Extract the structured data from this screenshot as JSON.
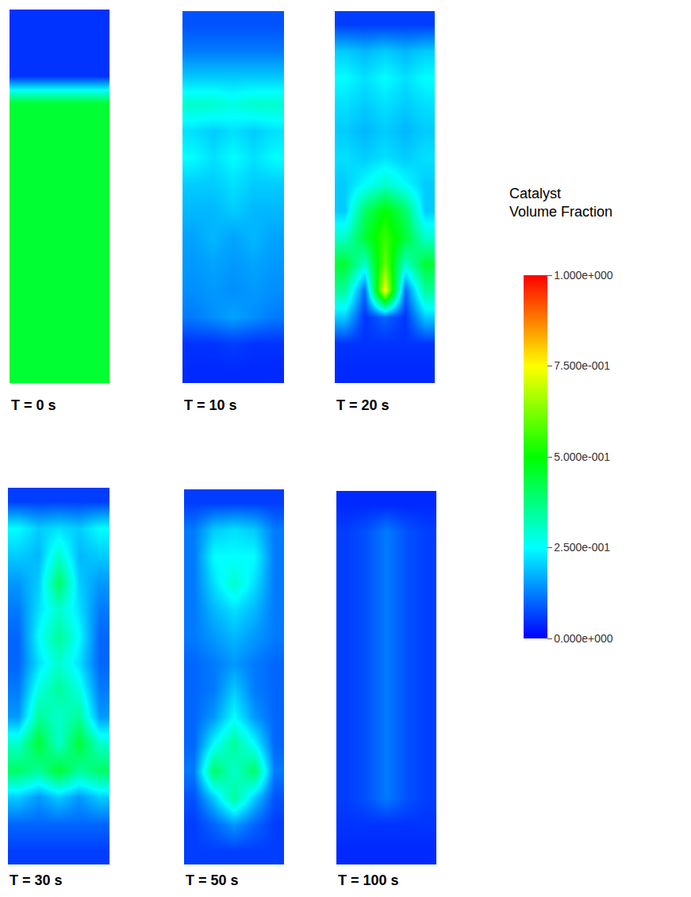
{
  "chart_data": [
    {
      "type": "heatmap",
      "title": "T = 0 s",
      "tick_labels": false,
      "cells": [
        [
          0.05,
          0.05,
          0.05,
          0.05,
          0.05
        ],
        [
          0.05,
          0.05,
          0.05,
          0.05,
          0.05
        ],
        [
          0.05,
          0.05,
          0.05,
          0.05,
          0.05
        ],
        [
          0.45,
          0.45,
          0.45,
          0.45,
          0.45
        ],
        [
          0.45,
          0.45,
          0.45,
          0.45,
          0.45
        ],
        [
          0.45,
          0.45,
          0.45,
          0.45,
          0.45
        ],
        [
          0.45,
          0.45,
          0.45,
          0.45,
          0.45
        ],
        [
          0.45,
          0.45,
          0.45,
          0.45,
          0.45
        ],
        [
          0.45,
          0.45,
          0.45,
          0.45,
          0.45
        ],
        [
          0.45,
          0.45,
          0.45,
          0.45,
          0.45
        ],
        [
          0.45,
          0.45,
          0.45,
          0.45,
          0.45
        ],
        [
          0.45,
          0.45,
          0.45,
          0.45,
          0.45
        ],
        [
          0.45,
          0.45,
          0.45,
          0.45,
          0.45
        ],
        [
          0.45,
          0.45,
          0.45,
          0.45,
          0.45
        ]
      ]
    },
    {
      "type": "heatmap",
      "title": "T = 10 s",
      "tick_labels": false,
      "cells": [
        [
          0.08,
          0.08,
          0.08,
          0.08,
          0.08
        ],
        [
          0.12,
          0.12,
          0.12,
          0.12,
          0.12
        ],
        [
          0.2,
          0.2,
          0.2,
          0.2,
          0.2
        ],
        [
          0.3,
          0.3,
          0.28,
          0.3,
          0.3
        ],
        [
          0.22,
          0.2,
          0.22,
          0.2,
          0.22
        ],
        [
          0.25,
          0.22,
          0.25,
          0.22,
          0.25
        ],
        [
          0.2,
          0.2,
          0.22,
          0.2,
          0.2
        ],
        [
          0.18,
          0.18,
          0.2,
          0.18,
          0.18
        ],
        [
          0.16,
          0.18,
          0.16,
          0.18,
          0.16
        ],
        [
          0.15,
          0.16,
          0.15,
          0.16,
          0.15
        ],
        [
          0.14,
          0.15,
          0.14,
          0.15,
          0.14
        ],
        [
          0.12,
          0.14,
          0.16,
          0.14,
          0.12
        ],
        [
          0.05,
          0.05,
          0.06,
          0.05,
          0.05
        ],
        [
          0.04,
          0.04,
          0.04,
          0.04,
          0.04
        ]
      ]
    },
    {
      "type": "heatmap",
      "title": "T = 20 s",
      "tick_labels": false,
      "cells": [
        [
          0.06,
          0.06,
          0.06,
          0.06,
          0.06
        ],
        [
          0.2,
          0.18,
          0.2,
          0.18,
          0.2
        ],
        [
          0.25,
          0.22,
          0.25,
          0.22,
          0.25
        ],
        [
          0.22,
          0.2,
          0.22,
          0.2,
          0.22
        ],
        [
          0.2,
          0.18,
          0.2,
          0.18,
          0.2
        ],
        [
          0.22,
          0.2,
          0.22,
          0.2,
          0.22
        ],
        [
          0.2,
          0.25,
          0.3,
          0.25,
          0.2
        ],
        [
          0.2,
          0.4,
          0.5,
          0.4,
          0.2
        ],
        [
          0.3,
          0.45,
          0.55,
          0.45,
          0.3
        ],
        [
          0.45,
          0.3,
          0.6,
          0.3,
          0.45
        ],
        [
          0.35,
          0.1,
          0.75,
          0.1,
          0.35
        ],
        [
          0.2,
          0.05,
          0.1,
          0.05,
          0.2
        ],
        [
          0.05,
          0.05,
          0.05,
          0.05,
          0.05
        ],
        [
          0.04,
          0.04,
          0.04,
          0.04,
          0.04
        ]
      ]
    },
    {
      "type": "heatmap",
      "title": "T = 30 s",
      "tick_labels": false,
      "cells": [
        [
          0.06,
          0.06,
          0.06,
          0.06,
          0.06
        ],
        [
          0.25,
          0.2,
          0.22,
          0.2,
          0.25
        ],
        [
          0.2,
          0.18,
          0.3,
          0.18,
          0.2
        ],
        [
          0.15,
          0.2,
          0.4,
          0.2,
          0.15
        ],
        [
          0.12,
          0.22,
          0.3,
          0.22,
          0.12
        ],
        [
          0.1,
          0.25,
          0.35,
          0.25,
          0.1
        ],
        [
          0.1,
          0.22,
          0.3,
          0.22,
          0.1
        ],
        [
          0.12,
          0.28,
          0.35,
          0.28,
          0.12
        ],
        [
          0.15,
          0.35,
          0.3,
          0.35,
          0.15
        ],
        [
          0.3,
          0.45,
          0.3,
          0.45,
          0.3
        ],
        [
          0.4,
          0.35,
          0.45,
          0.35,
          0.4
        ],
        [
          0.2,
          0.15,
          0.2,
          0.15,
          0.2
        ],
        [
          0.1,
          0.1,
          0.1,
          0.1,
          0.1
        ],
        [
          0.06,
          0.06,
          0.06,
          0.06,
          0.06
        ]
      ]
    },
    {
      "type": "heatmap",
      "title": "T = 50 s",
      "tick_labels": false,
      "cells": [
        [
          0.06,
          0.06,
          0.06,
          0.06,
          0.06
        ],
        [
          0.12,
          0.2,
          0.22,
          0.2,
          0.12
        ],
        [
          0.12,
          0.25,
          0.25,
          0.25,
          0.12
        ],
        [
          0.12,
          0.22,
          0.3,
          0.22,
          0.12
        ],
        [
          0.12,
          0.18,
          0.22,
          0.18,
          0.12
        ],
        [
          0.12,
          0.15,
          0.18,
          0.15,
          0.12
        ],
        [
          0.1,
          0.12,
          0.15,
          0.12,
          0.1
        ],
        [
          0.1,
          0.12,
          0.2,
          0.12,
          0.1
        ],
        [
          0.1,
          0.15,
          0.25,
          0.15,
          0.1
        ],
        [
          0.1,
          0.25,
          0.35,
          0.25,
          0.1
        ],
        [
          0.12,
          0.4,
          0.3,
          0.4,
          0.12
        ],
        [
          0.08,
          0.2,
          0.35,
          0.2,
          0.08
        ],
        [
          0.06,
          0.1,
          0.15,
          0.1,
          0.06
        ],
        [
          0.06,
          0.06,
          0.06,
          0.06,
          0.06
        ]
      ]
    },
    {
      "type": "heatmap",
      "title": "T = 100 s",
      "tick_labels": false,
      "cells": [
        [
          0.04,
          0.04,
          0.04,
          0.04,
          0.04
        ],
        [
          0.06,
          0.08,
          0.12,
          0.08,
          0.06
        ],
        [
          0.06,
          0.08,
          0.12,
          0.08,
          0.06
        ],
        [
          0.06,
          0.08,
          0.12,
          0.08,
          0.06
        ],
        [
          0.06,
          0.08,
          0.12,
          0.08,
          0.06
        ],
        [
          0.06,
          0.08,
          0.12,
          0.08,
          0.06
        ],
        [
          0.06,
          0.08,
          0.12,
          0.08,
          0.06
        ],
        [
          0.06,
          0.08,
          0.12,
          0.08,
          0.06
        ],
        [
          0.06,
          0.08,
          0.12,
          0.08,
          0.06
        ],
        [
          0.06,
          0.08,
          0.12,
          0.08,
          0.06
        ],
        [
          0.06,
          0.08,
          0.12,
          0.08,
          0.06
        ],
        [
          0.06,
          0.08,
          0.12,
          0.08,
          0.06
        ],
        [
          0.05,
          0.05,
          0.05,
          0.05,
          0.05
        ],
        [
          0.04,
          0.04,
          0.04,
          0.04,
          0.04
        ]
      ]
    }
  ],
  "colorbar": {
    "title": "Catalyst Volume Fraction",
    "range": [
      0,
      1
    ],
    "ticks": [
      {
        "value": 1,
        "label": "1.000e+000"
      },
      {
        "value": 0.75,
        "label": "7.500e-001"
      },
      {
        "value": 0.5,
        "label": "5.000e-001"
      },
      {
        "value": 0.25,
        "label": "2.500e-001"
      },
      {
        "value": 0,
        "label": "0.000e+000"
      }
    ]
  }
}
